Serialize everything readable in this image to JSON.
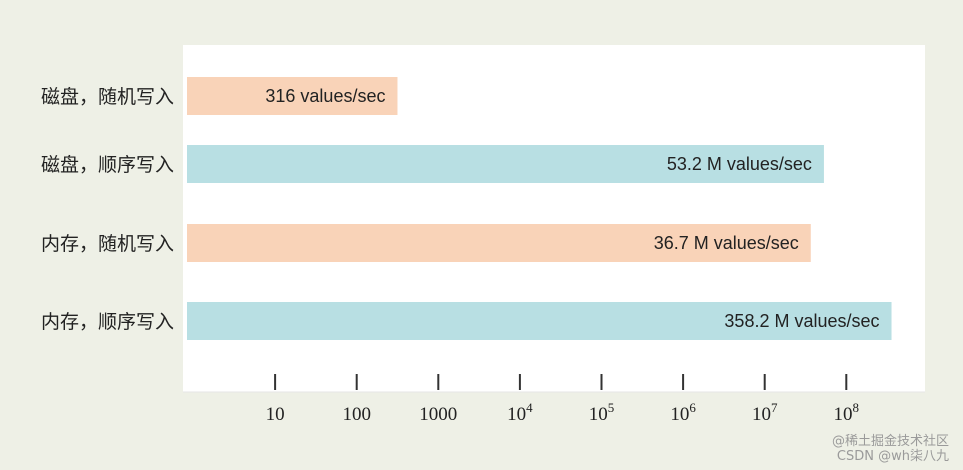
{
  "chart_data": {
    "type": "bar",
    "orientation": "horizontal",
    "scale": "log",
    "categories": [
      "磁盘，随机写入",
      "磁盘，顺序写入",
      "内存，随机写入",
      "内存，顺序写入"
    ],
    "values": [
      316,
      53200000,
      36700000,
      358200000
    ],
    "value_labels": [
      "316 values/sec",
      "53.2 M values/sec",
      "36.7 M values/sec",
      "358.2 M values/sec"
    ],
    "colors": [
      "#f9d3b8",
      "#b8dfe3",
      "#f9d3b8",
      "#b8dfe3"
    ],
    "xticks": [
      10,
      100,
      1000,
      10000,
      100000,
      1000000,
      10000000,
      100000000
    ],
    "xtick_labels": [
      {
        "base": "10",
        "exp": ""
      },
      {
        "base": "100",
        "exp": ""
      },
      {
        "base": "1000",
        "exp": ""
      },
      {
        "base": "10",
        "exp": "4"
      },
      {
        "base": "10",
        "exp": "5"
      },
      {
        "base": "10",
        "exp": "6"
      },
      {
        "base": "10",
        "exp": "7"
      },
      {
        "base": "10",
        "exp": "8"
      }
    ],
    "title": "",
    "xlabel": "",
    "ylabel": ""
  },
  "watermark": {
    "line1": "@稀土掘金技术社区",
    "line2": "CSDN @wh柒八九"
  }
}
